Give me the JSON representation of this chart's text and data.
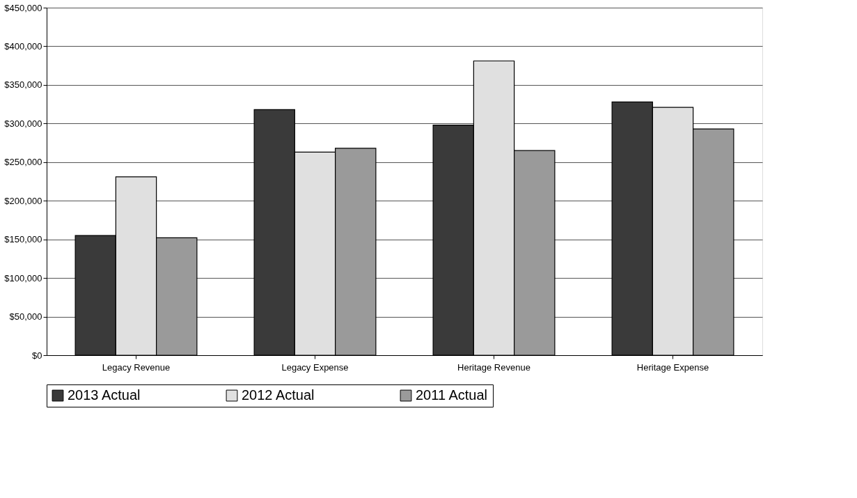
{
  "chart_data": {
    "type": "bar",
    "categories": [
      "Legacy Revenue",
      "Legacy Expense",
      "Heritage Revenue",
      "Heritage Expense"
    ],
    "series": [
      {
        "name": "2013 Actual",
        "color": "#3a3a3a",
        "values": [
          155000,
          318000,
          298000,
          328000
        ]
      },
      {
        "name": "2012 Actual",
        "color": "#e0e0e0",
        "values": [
          231000,
          263000,
          381000,
          321000
        ]
      },
      {
        "name": "2011 Actual",
        "color": "#9a9a9a",
        "values": [
          152000,
          268000,
          265000,
          293000
        ]
      }
    ],
    "ylim": [
      0,
      450000
    ],
    "yticks": [
      {
        "value": 0,
        "label": "$0"
      },
      {
        "value": 50000,
        "label": "$50,000"
      },
      {
        "value": 100000,
        "label": "$100,000"
      },
      {
        "value": 150000,
        "label": "$150,000"
      },
      {
        "value": 200000,
        "label": "$200,000"
      },
      {
        "value": 250000,
        "label": "$250,000"
      },
      {
        "value": 300000,
        "label": "$300,000"
      },
      {
        "value": 350000,
        "label": "$350,000"
      },
      {
        "value": 400000,
        "label": "$400,000"
      },
      {
        "value": 450000,
        "label": "$450,000"
      }
    ],
    "grid": "y",
    "legend": "bottom"
  }
}
